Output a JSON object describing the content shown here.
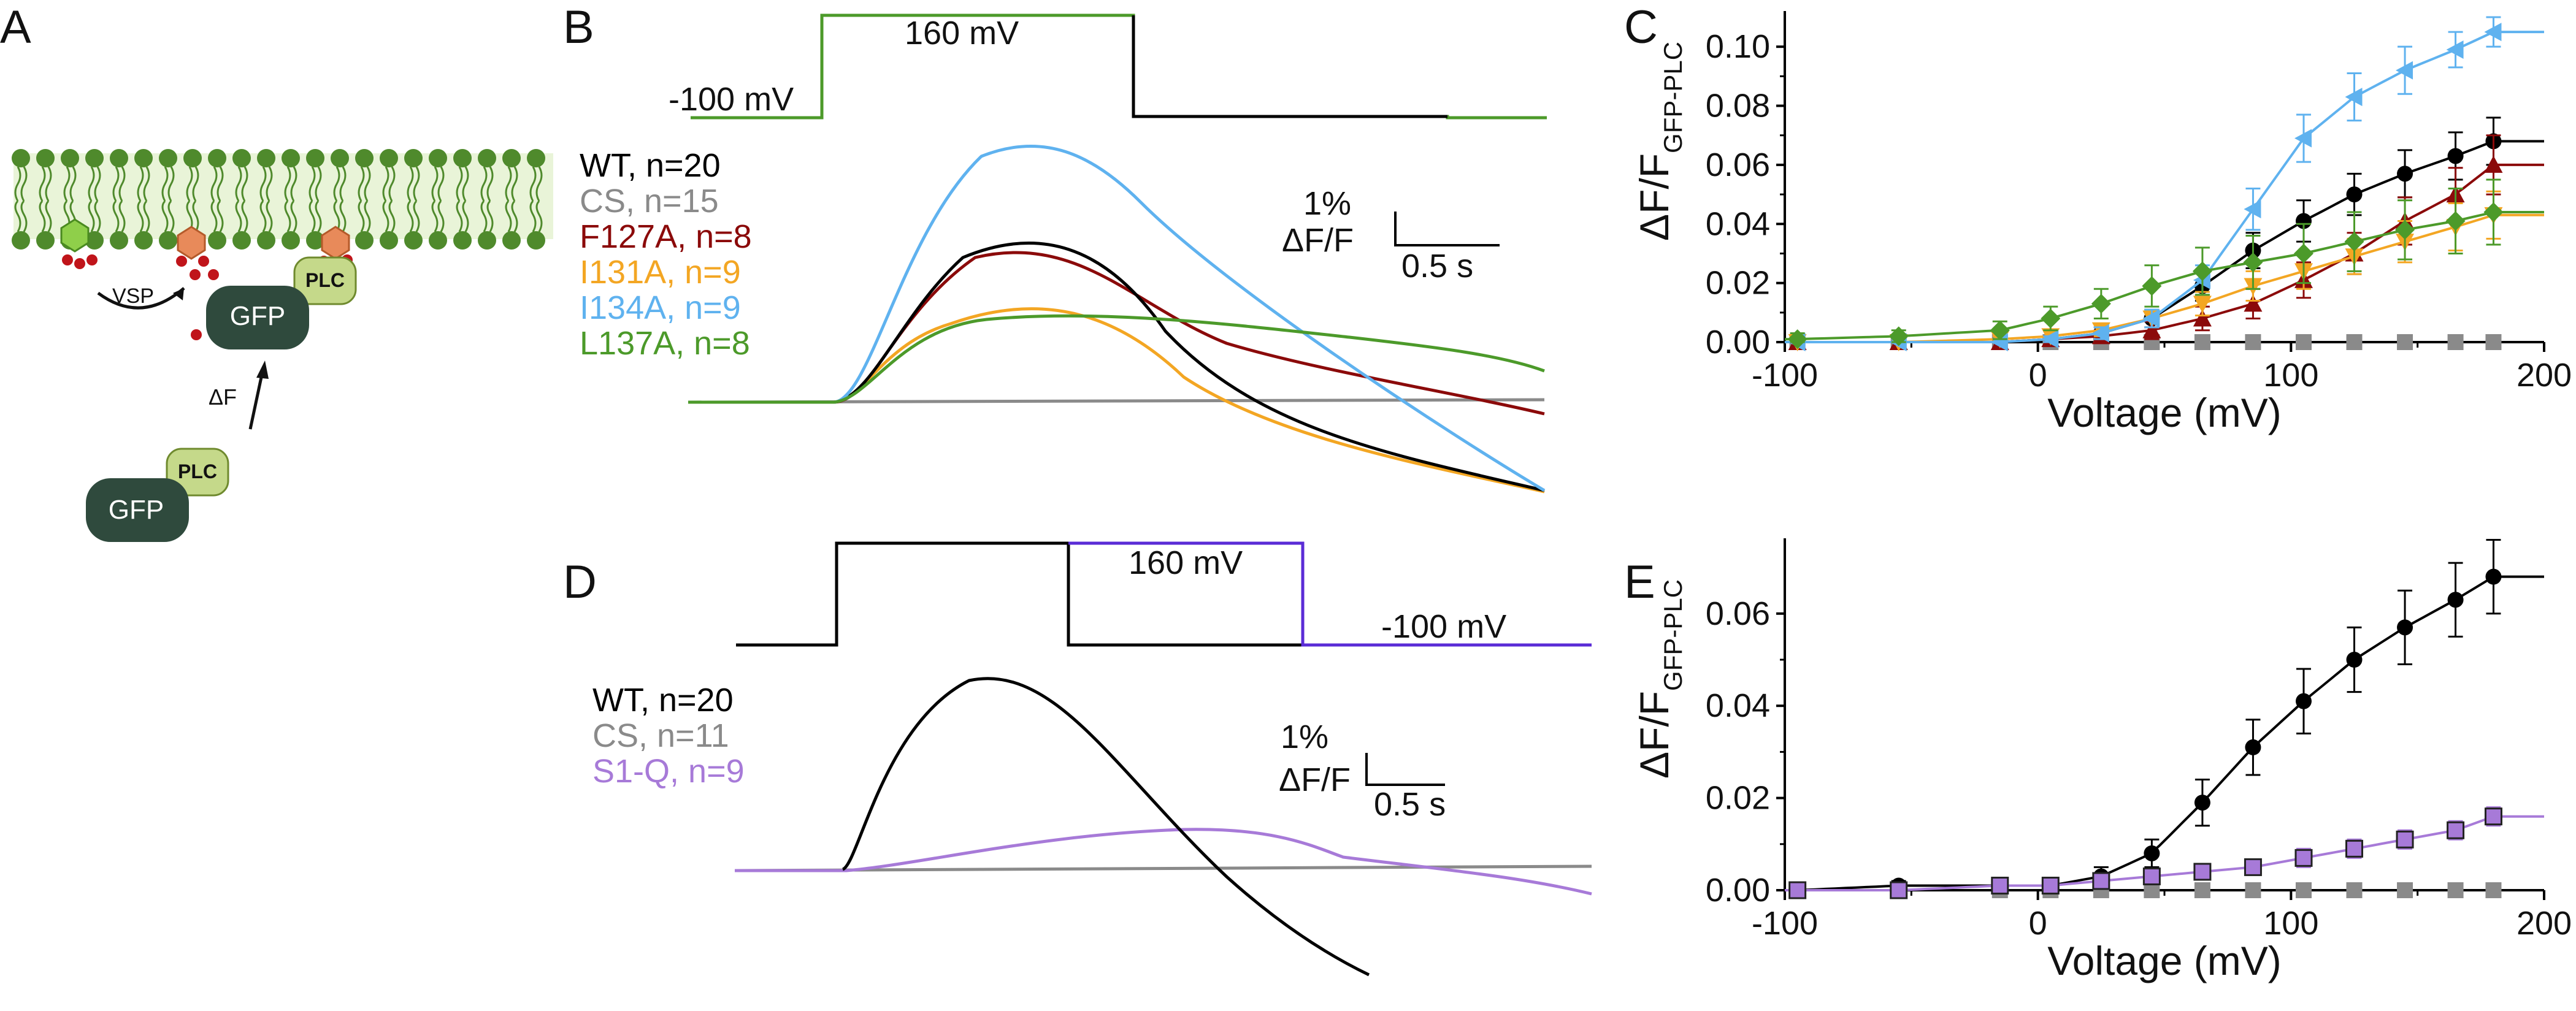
{
  "panels": {
    "a": "A",
    "b": "B",
    "c": "C",
    "d": "D",
    "e": "E"
  },
  "schematic": {
    "vsp": "VSP",
    "gfp_top": "GFP",
    "plc_top": "PLC",
    "delta_f": "ΔF",
    "gfp_bottom": "GFP",
    "plc_bottom": "PLC"
  },
  "panel_b": {
    "v_high": "160 mV",
    "v_low": "-100 mV",
    "legend": [
      {
        "label": "WT, n=20",
        "color": "#000000"
      },
      {
        "label": "CS, n=15",
        "color": "#8a8a8a"
      },
      {
        "label": "F127A, n=8",
        "color": "#8b0a0a"
      },
      {
        "label": "I131A, n=9",
        "color": "#f3a623"
      },
      {
        "label": "I134A, n=9",
        "color": "#5fb2ef"
      },
      {
        "label": "L137A, n=8",
        "color": "#4c9a2a"
      }
    ],
    "scale_y": "1%",
    "scale_y2": "ΔF/F",
    "scale_x": "0.5 s"
  },
  "panel_d": {
    "v_high": "160 mV",
    "v_low": "-100 mV",
    "legend": [
      {
        "label": "WT, n=20",
        "color": "#000000"
      },
      {
        "label": "CS, n=11",
        "color": "#8a8a8a"
      },
      {
        "label": "S1-Q, n=9",
        "color": "#a77ad8"
      }
    ],
    "scale_y": "1%",
    "scale_y2": "ΔF/F",
    "scale_x": "0.5 s"
  },
  "axis_text": {
    "ylabel_main": "ΔF/F",
    "ylabel_sub": "GFP-PLC",
    "xlabel": "Voltage (mV)"
  },
  "chart_data": [
    {
      "type": "scatter",
      "panel": "C",
      "xlabel": "Voltage (mV)",
      "ylabel": "ΔF/F GFP-PLC",
      "xlim": [
        -100,
        200
      ],
      "ylim": [
        0,
        0.11
      ],
      "xticks": [
        -100,
        0,
        100,
        200
      ],
      "yticks": [
        0.0,
        0.02,
        0.04,
        0.06,
        0.08,
        0.1
      ],
      "ytick_labels": [
        "0.00",
        "0.02",
        "0.04",
        "0.06",
        "0.08",
        "0.10"
      ],
      "x": [
        -95,
        -55,
        -15,
        5,
        25,
        45,
        65,
        85,
        105,
        125,
        145,
        165,
        180
      ],
      "series": [
        {
          "name": "WT",
          "color": "#000000",
          "marker": "circle",
          "y": [
            0,
            0,
            0,
            0.001,
            0.003,
            0.008,
            0.019,
            0.031,
            0.041,
            0.05,
            0.057,
            0.063,
            0.068
          ],
          "err": [
            0.001,
            0.001,
            0.001,
            0.001,
            0.002,
            0.003,
            0.005,
            0.006,
            0.007,
            0.007,
            0.008,
            0.008,
            0.008
          ]
        },
        {
          "name": "CS",
          "color": "#8a8a8a",
          "marker": "square",
          "y": [
            0,
            0,
            0,
            0,
            0,
            0,
            0,
            0,
            0,
            0,
            0,
            0,
            0
          ],
          "err": [
            0,
            0,
            0,
            0,
            0,
            0,
            0,
            0,
            0,
            0,
            0,
            0,
            0
          ]
        },
        {
          "name": "F127A",
          "color": "#8b0a0a",
          "marker": "triangle-up",
          "y": [
            0,
            0,
            0,
            0.001,
            0.002,
            0.004,
            0.008,
            0.013,
            0.021,
            0.03,
            0.041,
            0.05,
            0.06
          ],
          "err": [
            0.001,
            0.001,
            0.001,
            0.001,
            0.002,
            0.003,
            0.004,
            0.005,
            0.006,
            0.007,
            0.008,
            0.009,
            0.01
          ]
        },
        {
          "name": "I131A",
          "color": "#f3a623",
          "marker": "triangle-down",
          "y": [
            0,
            0,
            0.001,
            0.002,
            0.004,
            0.008,
            0.013,
            0.019,
            0.024,
            0.029,
            0.034,
            0.039,
            0.043
          ],
          "err": [
            0.001,
            0.001,
            0.001,
            0.002,
            0.002,
            0.003,
            0.004,
            0.005,
            0.006,
            0.006,
            0.007,
            0.008,
            0.008
          ]
        },
        {
          "name": "I134A",
          "color": "#5fb2ef",
          "marker": "triangle-left",
          "y": [
            0,
            0,
            0,
            0.001,
            0.003,
            0.008,
            0.021,
            0.045,
            0.069,
            0.083,
            0.092,
            0.099,
            0.105
          ],
          "err": [
            0.001,
            0.001,
            0.001,
            0.001,
            0.002,
            0.003,
            0.005,
            0.007,
            0.008,
            0.008,
            0.008,
            0.006,
            0.005
          ]
        },
        {
          "name": "L137A",
          "color": "#4c9a2a",
          "marker": "diamond",
          "y": [
            0.001,
            0.002,
            0.004,
            0.008,
            0.013,
            0.019,
            0.024,
            0.027,
            0.03,
            0.034,
            0.038,
            0.041,
            0.044
          ],
          "err": [
            0.002,
            0.002,
            0.003,
            0.004,
            0.005,
            0.007,
            0.008,
            0.009,
            0.01,
            0.01,
            0.01,
            0.011,
            0.011
          ]
        }
      ]
    },
    {
      "type": "scatter",
      "panel": "E",
      "xlabel": "Voltage (mV)",
      "ylabel": "ΔF/F GFP-PLC",
      "xlim": [
        -100,
        200
      ],
      "ylim": [
        0,
        0.075
      ],
      "xticks": [
        -100,
        0,
        100,
        200
      ],
      "yticks": [
        0.0,
        0.02,
        0.04,
        0.06
      ],
      "ytick_labels": [
        "0.00",
        "0.02",
        "0.04",
        "0.06"
      ],
      "x": [
        -95,
        -55,
        -15,
        5,
        25,
        45,
        65,
        85,
        105,
        125,
        145,
        165,
        180
      ],
      "series": [
        {
          "name": "WT",
          "color": "#000000",
          "marker": "circle",
          "y": [
            0,
            0.001,
            0.001,
            0.001,
            0.003,
            0.008,
            0.019,
            0.031,
            0.041,
            0.05,
            0.057,
            0.063,
            0.068
          ],
          "err": [
            0.001,
            0.001,
            0.001,
            0.001,
            0.002,
            0.003,
            0.005,
            0.006,
            0.007,
            0.007,
            0.008,
            0.008,
            0.008
          ]
        },
        {
          "name": "CS",
          "color": "#8a8a8a",
          "marker": "square",
          "y": [
            0,
            0,
            0,
            0,
            0,
            0,
            0,
            0,
            0,
            0,
            0,
            0,
            0
          ],
          "err": [
            0,
            0,
            0,
            0,
            0,
            0,
            0,
            0,
            0,
            0,
            0,
            0,
            0
          ]
        },
        {
          "name": "S1-Q",
          "color": "#a77ad8",
          "marker": "square-filled",
          "y": [
            0,
            0,
            0.001,
            0.001,
            0.002,
            0.003,
            0.004,
            0.005,
            0.007,
            0.009,
            0.011,
            0.013,
            0.016
          ],
          "err": [
            0.001,
            0.001,
            0.001,
            0.001,
            0.001,
            0.001,
            0.001,
            0.001,
            0.002,
            0.002,
            0.002,
            0.002,
            0.002
          ]
        }
      ]
    }
  ]
}
